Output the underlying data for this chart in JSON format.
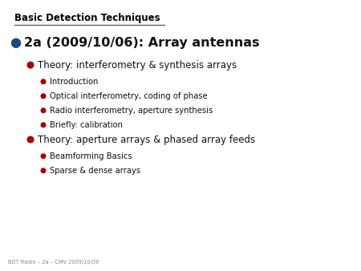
{
  "title": "Basic Detection Techniques",
  "footer": "BDT Radio – 2a – CMV 2009/10/06",
  "bg_color": "#ffffff",
  "title_color": "#000000",
  "footer_color": "#888888",
  "line_color": "#555555",
  "bullet_color_l0": "#1a4a80",
  "bullet_color_l1": "#aa0000",
  "bullet_color_l2": "#aa0000",
  "title_fontsize": 8.5,
  "fontsize_l0": 11.5,
  "fontsize_l1": 8.5,
  "fontsize_l2": 7.2,
  "footer_fontsize": 4.8,
  "items": [
    {
      "level": 0,
      "text": "2a (2009/10/06): Array antennas"
    },
    {
      "level": 1,
      "text": "Theory: interferometry & synthesis arrays"
    },
    {
      "level": 2,
      "text": "Introduction"
    },
    {
      "level": 2,
      "text": "Optical interferometry, coding of phase"
    },
    {
      "level": 2,
      "text": "Radio interferometry, aperture synthesis"
    },
    {
      "level": 2,
      "text": "Briefly: calibration"
    },
    {
      "level": 1,
      "text": "Theory: aperture arrays & phased array feeds"
    },
    {
      "level": 2,
      "text": "Beamforming Basics"
    },
    {
      "level": 2,
      "text": "Sparse & dense arrays"
    }
  ]
}
